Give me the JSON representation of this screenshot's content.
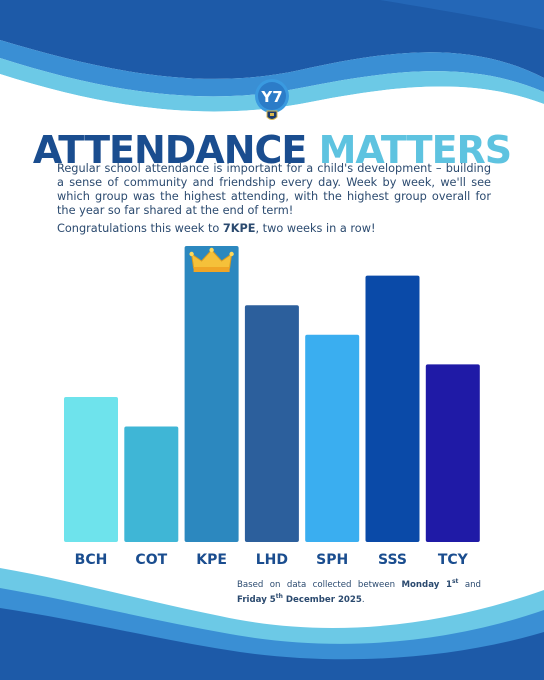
{
  "title_part1": "ATTENDANCE",
  "title_part2": "MATTERS",
  "logo_text": "Y7",
  "intro_text": "Regular school attendance is important for a child's development – building a sense of community and friendship every day. Week by week, we'll see which group was the highest attending, with the highest group overall for the year so far shared at the end of term!",
  "congrats_prefix": "Congratulations this week to ",
  "congrats_group": "7KPE",
  "congrats_suffix": ", two weeks in a row!",
  "footnote": {
    "prefix": "Based on data collected between ",
    "start_day": "Monday 1",
    "start_sup": "st",
    "joiner": " and ",
    "end_day": "Friday 5",
    "end_sup": "th",
    "end_rest": " December 2025",
    "suffix": "."
  },
  "colors": {
    "title_dark": "#1a4d8f",
    "title_light": "#5ec3e0",
    "wave_dark": "#1d5aa8",
    "wave_mid": "#3a8fd4",
    "wave_light": "#6cc9e6"
  },
  "chart_data": {
    "type": "bar",
    "categories": [
      "BCH",
      "COT",
      "KPE",
      "LHD",
      "SPH",
      "SSS",
      "TCY"
    ],
    "values": [
      49,
      39,
      100,
      80,
      70,
      90,
      60
    ],
    "colors": [
      "#6ee3ec",
      "#3fb6d6",
      "#2c88bf",
      "#2c5f9c",
      "#3aaef0",
      "#0a4aa8",
      "#1f1aa6"
    ],
    "highlight_index": 2,
    "highlight_icon": "crown-icon",
    "ylim": [
      0,
      100
    ],
    "title": "",
    "xlabel": "",
    "ylabel": "",
    "grid": false
  }
}
